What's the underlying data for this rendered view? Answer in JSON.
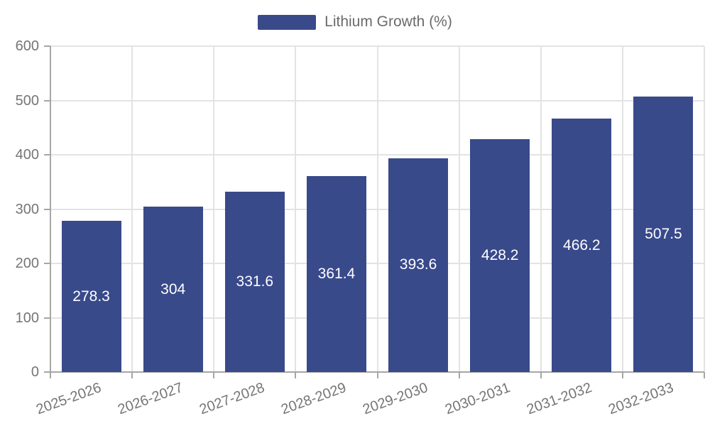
{
  "chart_data": {
    "type": "bar",
    "title": "",
    "legend": {
      "label": "Lithium Growth (%)",
      "position": "top-center"
    },
    "categories": [
      "2025-2026",
      "2026-2027",
      "2027-2028",
      "2028-2029",
      "2029-2030",
      "2030-2031",
      "2031-2032",
      "2032-2033"
    ],
    "values": [
      278.3,
      304,
      331.6,
      361.4,
      393.6,
      428.2,
      466.2,
      507.5
    ],
    "xlabel": "",
    "ylabel": "",
    "ylim": [
      0,
      600
    ],
    "yticks": [
      0,
      100,
      200,
      300,
      400,
      500,
      600
    ],
    "grid": true,
    "value_labels_inside_bars": true,
    "x_tick_label_rotation_deg": -20,
    "colors": {
      "bar": "#394A8B",
      "grid_line": "#E3E3E3",
      "axis_line": "#A6A6A6",
      "tick_label": "#757575",
      "value_label": "#FFFFFF",
      "legend_text": "#6B6B6B",
      "background": "#FFFFFF"
    }
  }
}
